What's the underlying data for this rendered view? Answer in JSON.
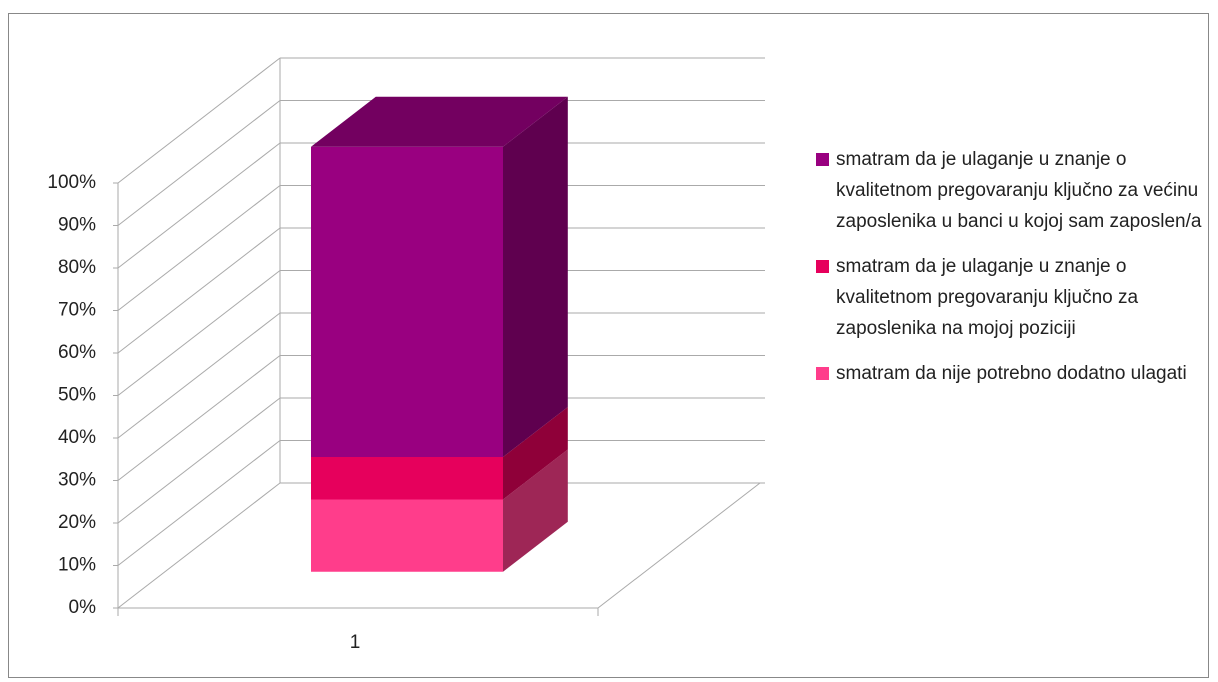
{
  "chart_data": {
    "type": "bar3d_stacked_percent",
    "categories": [
      "1"
    ],
    "series": [
      {
        "name": "smatram da nije potrebno dodatno ulagati",
        "color": "#ff3d8b",
        "values": [
          17
        ]
      },
      {
        "name": "smatram da je ulaganje u znanje o kvalitetnom pregovaranju ključno za zaposlenika na mojoj poziciji",
        "color": "#e6005c",
        "values": [
          10
        ]
      },
      {
        "name": "smatram da je ulaganje u znanje o kvalitetnom pregovaranju ključno za većinu zaposlenika u banci u kojoj sam zaposlen/a",
        "color": "#990080",
        "values": [
          73
        ]
      }
    ],
    "ylim": [
      0,
      100
    ],
    "yticks": [
      {
        "value": 0,
        "label": "0%"
      },
      {
        "value": 10,
        "label": "10%"
      },
      {
        "value": 20,
        "label": "20%"
      },
      {
        "value": 30,
        "label": "30%"
      },
      {
        "value": 40,
        "label": "40%"
      },
      {
        "value": 50,
        "label": "50%"
      },
      {
        "value": 60,
        "label": "60%"
      },
      {
        "value": 70,
        "label": "70%"
      },
      {
        "value": 80,
        "label": "80%"
      },
      {
        "value": 90,
        "label": "90%"
      },
      {
        "value": 100,
        "label": "100%"
      }
    ],
    "grid": true,
    "legend": "right"
  }
}
